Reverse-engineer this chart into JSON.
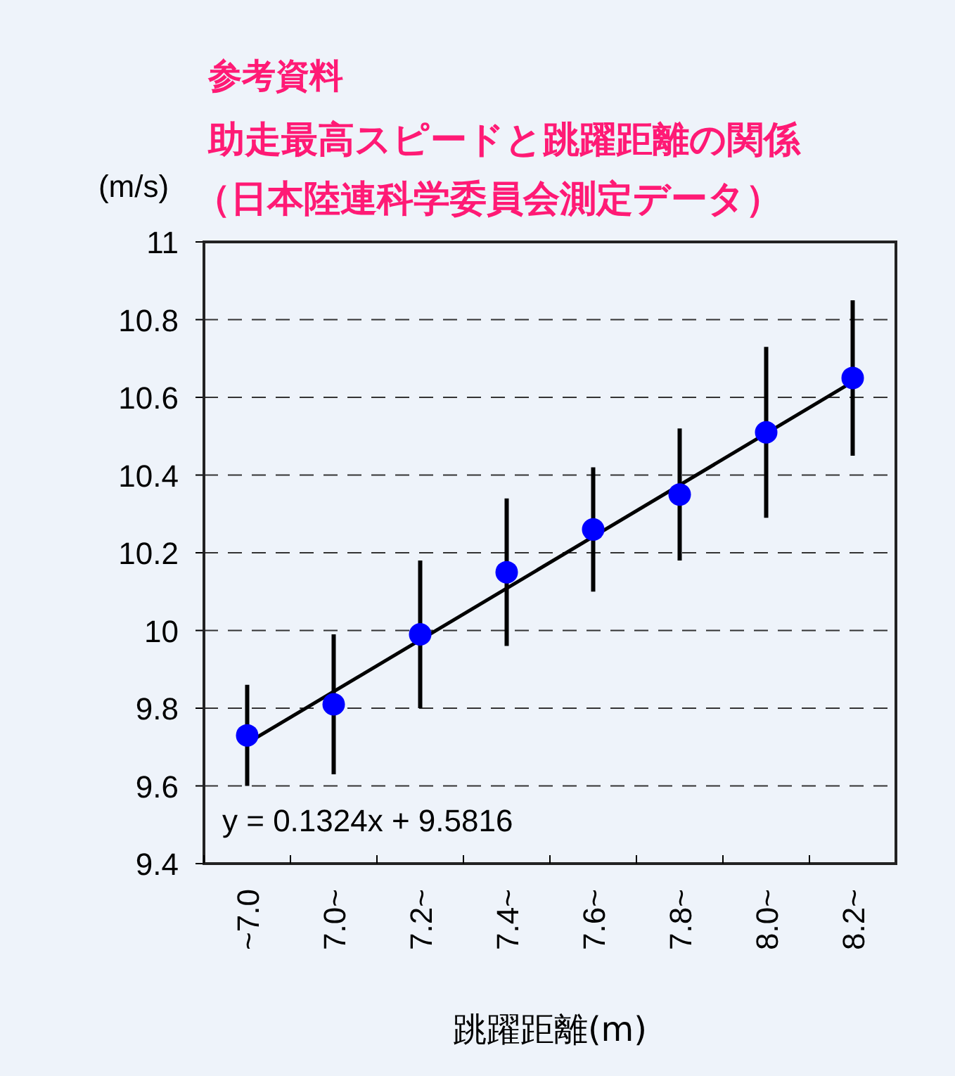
{
  "chart_data": {
    "type": "scatter",
    "title": "助走最高スピードと跳躍距離の関係",
    "subtitle": "（日本陸連科学委員会測定データ）",
    "xlabel": "跳躍距離(m)",
    "ylabel": "(m/s)",
    "annotations": [
      "参考資料",
      "y = 0.1324x + 9.5816"
    ],
    "categories": [
      "~7.0",
      "7.0~",
      "7.2~",
      "7.4~",
      "7.6~",
      "7.8~",
      "8.0~",
      "8.2~"
    ],
    "series": [
      {
        "color": "#0000ff",
        "marker": "circle",
        "values": [
          9.73,
          9.81,
          9.99,
          10.15,
          10.26,
          10.35,
          10.51,
          10.65
        ],
        "errors": [
          0.13,
          0.18,
          0.19,
          0.19,
          0.16,
          0.17,
          0.22,
          0.2
        ]
      },
      {
        "type": "line",
        "color": "#000000",
        "x": [
          "~7.0",
          "8.2~"
        ],
        "values": [
          9.71,
          10.64
        ]
      }
    ],
    "ylim": [
      9.4,
      11
    ],
    "yticks": [
      9.4,
      9.6,
      9.8,
      10,
      10.2,
      10.4,
      10.6,
      10.8,
      11
    ],
    "grid": "y"
  }
}
